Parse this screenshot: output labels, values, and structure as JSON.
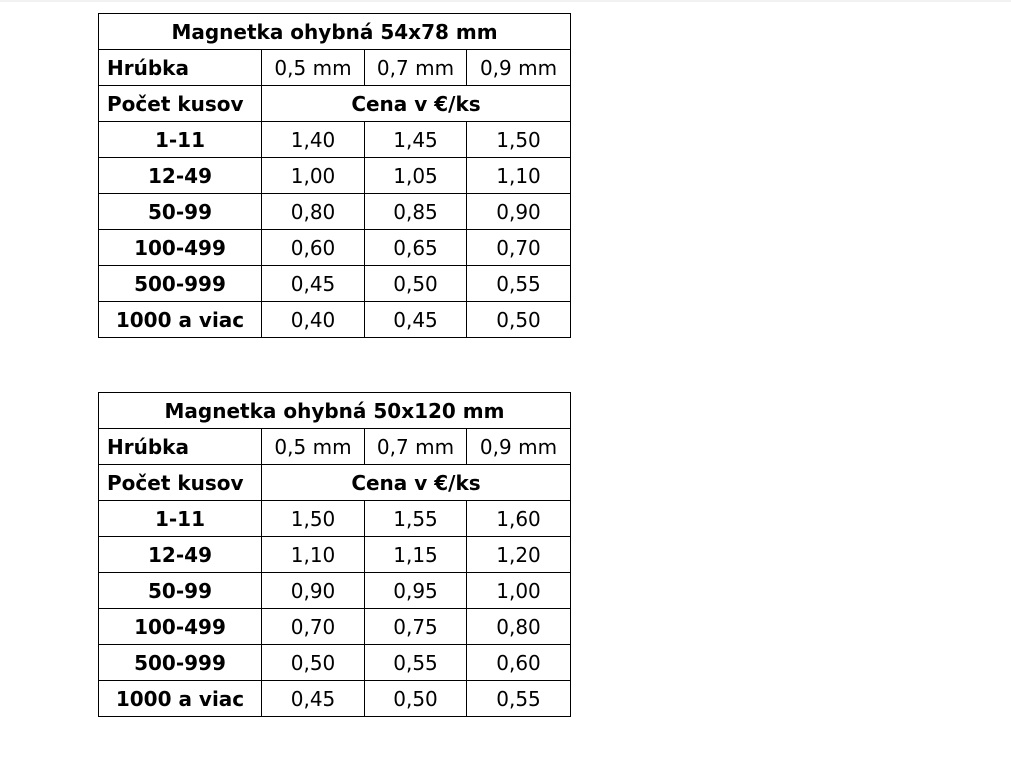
{
  "tables": [
    {
      "title": "Magnetka ohybná 54x78 mm",
      "thickness_label": "Hrúbka",
      "thicknesses": [
        "0,5 mm",
        "0,7 mm",
        "0,9 mm"
      ],
      "quantity_label": "Počet kusov",
      "price_label": "Cena v €/ks",
      "rows": [
        {
          "qty": "1-11",
          "prices": [
            "1,40",
            "1,45",
            "1,50"
          ]
        },
        {
          "qty": "12-49",
          "prices": [
            "1,00",
            "1,05",
            "1,10"
          ]
        },
        {
          "qty": "50-99",
          "prices": [
            "0,80",
            "0,85",
            "0,90"
          ]
        },
        {
          "qty": "100-499",
          "prices": [
            "0,60",
            "0,65",
            "0,70"
          ]
        },
        {
          "qty": "500-999",
          "prices": [
            "0,45",
            "0,50",
            "0,55"
          ]
        },
        {
          "qty": "1000 a viac",
          "prices": [
            "0,40",
            "0,45",
            "0,50"
          ]
        }
      ]
    },
    {
      "title": "Magnetka ohybná 50x120 mm",
      "thickness_label": "Hrúbka",
      "thicknesses": [
        "0,5 mm",
        "0,7 mm",
        "0,9 mm"
      ],
      "quantity_label": "Počet kusov",
      "price_label": "Cena v €/ks",
      "rows": [
        {
          "qty": "1-11",
          "prices": [
            "1,50",
            "1,55",
            "1,60"
          ]
        },
        {
          "qty": "12-49",
          "prices": [
            "1,10",
            "1,15",
            "1,20"
          ]
        },
        {
          "qty": "50-99",
          "prices": [
            "0,90",
            "0,95",
            "1,00"
          ]
        },
        {
          "qty": "100-499",
          "prices": [
            "0,70",
            "0,75",
            "0,80"
          ]
        },
        {
          "qty": "500-999",
          "prices": [
            "0,50",
            "0,55",
            "0,60"
          ]
        },
        {
          "qty": "1000 a viac",
          "prices": [
            "0,45",
            "0,50",
            "0,55"
          ]
        }
      ]
    }
  ]
}
